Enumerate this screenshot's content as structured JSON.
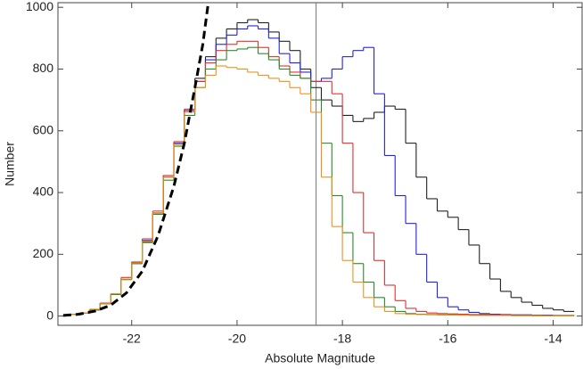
{
  "chart_data": {
    "type": "histogram",
    "xlabel": "Absolute Magnitude",
    "ylabel": "Number",
    "bins": [
      -23.2,
      -23.0,
      -22.8,
      -22.6,
      -22.4,
      -22.2,
      -22.0,
      -21.8,
      -21.6,
      -21.4,
      -21.2,
      -21.0,
      -20.8,
      -20.6,
      -20.4,
      -20.2,
      -20.0,
      -19.8,
      -19.6,
      -19.4,
      -19.2,
      -19.0,
      -18.8,
      -18.6,
      -18.4,
      -18.2,
      -18.0,
      -17.8,
      -17.6,
      -17.4,
      -17.2,
      -17.0,
      -16.8,
      -16.6,
      -16.4,
      -16.2,
      -16.0,
      -15.8,
      -15.6,
      -15.4,
      -15.2,
      -15.0,
      -14.8,
      -14.6,
      -14.4,
      -14.2,
      -14.0,
      -13.8,
      -13.6
    ],
    "series": [
      {
        "color": "#222222",
        "values": [
          5,
          10,
          20,
          40,
          70,
          120,
          170,
          240,
          330,
          450,
          560,
          670,
          770,
          840,
          900,
          930,
          950,
          960,
          950,
          920,
          890,
          860,
          800,
          740,
          700,
          680,
          650,
          630,
          640,
          660,
          680,
          670,
          560,
          450,
          380,
          340,
          320,
          280,
          230,
          170,
          120,
          80,
          60,
          45,
          35,
          25,
          20,
          15
        ]
      },
      {
        "color": "#2323dd",
        "values": [
          5,
          10,
          20,
          40,
          70,
          120,
          175,
          245,
          335,
          455,
          560,
          665,
          760,
          830,
          880,
          910,
          930,
          940,
          930,
          900,
          850,
          820,
          790,
          760,
          770,
          800,
          840,
          860,
          870,
          720,
          520,
          390,
          300,
          200,
          110,
          60,
          30,
          20,
          12,
          8,
          6,
          5,
          4,
          4,
          3,
          3,
          2,
          2
        ]
      },
      {
        "color": "#e03030",
        "values": [
          5,
          10,
          22,
          42,
          72,
          125,
          175,
          250,
          340,
          455,
          565,
          670,
          760,
          820,
          860,
          880,
          890,
          890,
          870,
          840,
          810,
          790,
          770,
          760,
          760,
          720,
          560,
          400,
          270,
          180,
          100,
          50,
          25,
          15,
          10,
          8,
          7,
          6,
          5,
          5,
          4,
          4,
          3,
          3,
          3,
          2,
          2,
          2
        ]
      },
      {
        "color": "#2a8a2a",
        "values": [
          5,
          10,
          20,
          40,
          70,
          118,
          170,
          238,
          330,
          440,
          550,
          650,
          740,
          800,
          830,
          860,
          865,
          870,
          850,
          830,
          800,
          780,
          770,
          700,
          560,
          390,
          270,
          170,
          110,
          60,
          30,
          15,
          8,
          6,
          5,
          4,
          4,
          3,
          3,
          3,
          2,
          2,
          2,
          2,
          1,
          1,
          1,
          1
        ]
      },
      {
        "color": "#f0901a",
        "values": [
          5,
          10,
          22,
          40,
          72,
          120,
          172,
          242,
          335,
          450,
          555,
          660,
          740,
          780,
          810,
          805,
          800,
          790,
          780,
          770,
          760,
          740,
          720,
          660,
          450,
          290,
          180,
          110,
          60,
          30,
          15,
          8,
          6,
          5,
          4,
          3,
          3,
          3,
          2,
          2,
          2,
          2,
          1,
          1,
          1,
          1,
          1,
          1
        ]
      }
    ],
    "curve": {
      "color": "#000000",
      "x": [
        -23.3,
        -23.0,
        -22.7,
        -22.4,
        -22.1,
        -21.8,
        -21.5,
        -21.2,
        -21.0,
        -20.8,
        -20.65,
        -20.55
      ],
      "values": [
        2,
        6,
        16,
        35,
        75,
        145,
        260,
        420,
        560,
        740,
        880,
        1010
      ]
    },
    "reference_line": -18.5,
    "xlim": [
      -23.4,
      -13.45
    ],
    "ylim": [
      -30,
      1015
    ],
    "xticks": [
      -22,
      -20,
      -18,
      -16,
      -14
    ],
    "yticks": [
      0,
      200,
      400,
      600,
      800,
      1000
    ]
  }
}
